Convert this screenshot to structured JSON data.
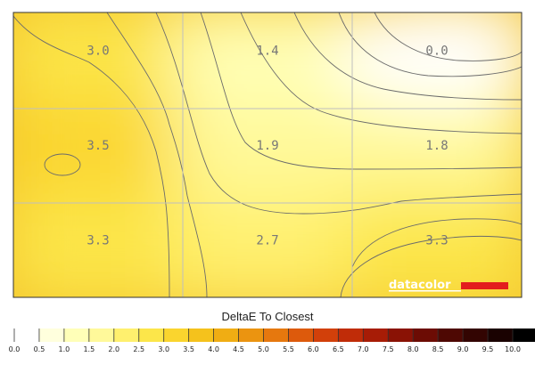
{
  "chart_data": {
    "type": "heatmap",
    "grid_rows": 3,
    "grid_cols": 3,
    "values": [
      [
        3.0,
        1.4,
        0.0
      ],
      [
        3.5,
        1.9,
        1.8
      ],
      [
        3.3,
        2.7,
        3.3
      ]
    ],
    "value_labels": [
      [
        "3.0",
        "1.4",
        "0.0"
      ],
      [
        "3.5",
        "1.9",
        "1.8"
      ],
      [
        "3.3",
        "2.7",
        "3.3"
      ]
    ],
    "colorbar": {
      "title": "DeltaE To Closest",
      "min": 0,
      "max": 10,
      "step": 0.5,
      "tick_labels": [
        "0.0",
        "0.5",
        "1.0",
        "1.5",
        "2.0",
        "2.5",
        "3.0",
        "3.5",
        "4.0",
        "4.5",
        "5.0",
        "5.5",
        "6.0",
        "6.5",
        "7.0",
        "7.5",
        "8.0",
        "8.5",
        "9.0",
        "9.5",
        "10.0"
      ],
      "colors": [
        "#ffffff",
        "#ffffdd",
        "#ffffb8",
        "#fff99a",
        "#fff06e",
        "#fce64a",
        "#fad52e",
        "#f5c21c",
        "#f0ad13",
        "#eb9410",
        "#e6780e",
        "#dd5a0c",
        "#d2400a",
        "#c02c08",
        "#a71c06",
        "#8a1205",
        "#6c0c04",
        "#4e0803",
        "#330502",
        "#1a0201",
        "#000000"
      ]
    },
    "colors": {
      "field_high": "#f0b414",
      "field_mid": "#fce664",
      "field_low": "#ffffff",
      "contour": "#6b6b6b",
      "gridline": "#bfbfbf",
      "brand_red": "#e31d1d"
    }
  },
  "branding": {
    "logo_text": "datacolor"
  }
}
